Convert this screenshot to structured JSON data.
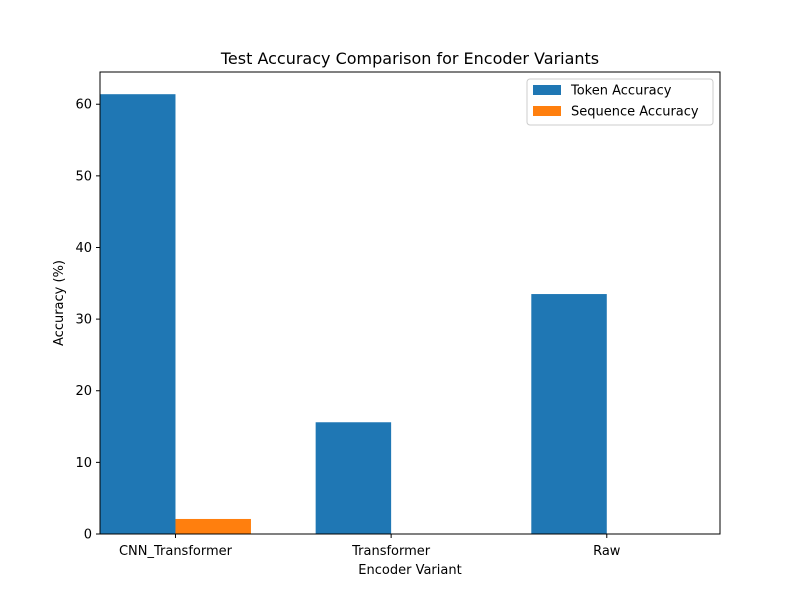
{
  "chart_data": {
    "type": "bar",
    "title": "Test Accuracy Comparison for Encoder Variants",
    "xlabel": "Encoder Variant",
    "ylabel": "Accuracy (%)",
    "categories": [
      "CNN_Transformer",
      "Transformer",
      "Raw"
    ],
    "series": [
      {
        "name": "Token Accuracy",
        "values": [
          61.4,
          15.6,
          33.5
        ],
        "color": "#1f77b4"
      },
      {
        "name": "Sequence Accuracy",
        "values": [
          2.1,
          0.0,
          0.0
        ],
        "color": "#ff7f0e"
      }
    ],
    "ylim": [
      0,
      64.5
    ],
    "yticks": [
      0,
      10,
      20,
      30,
      40,
      50,
      60
    ],
    "grid": false,
    "legend_position": "top-right"
  }
}
